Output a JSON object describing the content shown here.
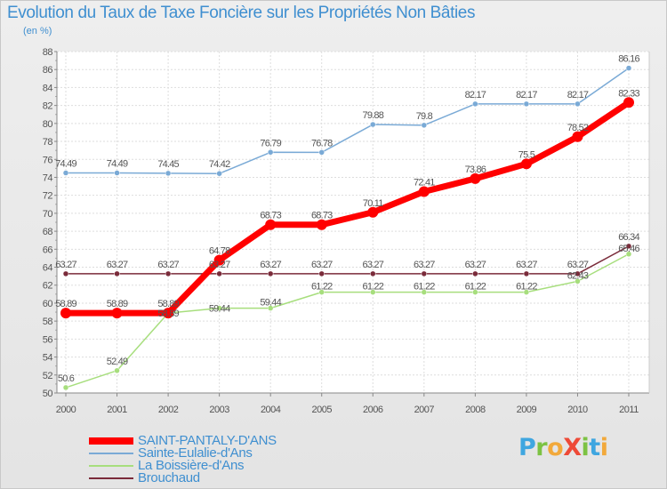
{
  "title": "Evolution du Taux de Taxe Foncière sur les Propriétés Non Bâties",
  "unit": "(en %)",
  "logo": {
    "text": "Proxiti",
    "letters": [
      {
        "ch": "P",
        "color": "#3fa6e0"
      },
      {
        "ch": "r",
        "color": "#7cc243"
      },
      {
        "ch": "o",
        "color": "#f2a93b"
      },
      {
        "ch": "X",
        "color": "#ee4a37"
      },
      {
        "ch": "i",
        "color": "#7cc243"
      },
      {
        "ch": "t",
        "color": "#3fa6e0"
      },
      {
        "ch": "i",
        "color": "#f2a93b"
      }
    ]
  },
  "chart_data": {
    "type": "line",
    "title": "Evolution du Taux de Taxe Foncière sur les Propriétés Non Bâties",
    "ylabel": "(en %)",
    "xlabel": "",
    "x": [
      "2000",
      "2001",
      "2002",
      "2003",
      "2004",
      "2005",
      "2006",
      "2007",
      "2008",
      "2009",
      "2010",
      "2011"
    ],
    "ylim": [
      50,
      88
    ],
    "yticks": [
      "50",
      "52",
      "54",
      "56",
      "58",
      "60",
      "62",
      "64",
      "66",
      "68",
      "70",
      "72",
      "74",
      "76",
      "78",
      "80",
      "82",
      "84",
      "86",
      "88"
    ],
    "grid": true,
    "legend_position": "bottom-left",
    "series": [
      {
        "name": "SAINT-PANTALY-D'ANS",
        "color": "#ff0000",
        "width": 7,
        "marker": 6,
        "values": [
          58.89,
          58.89,
          58.89,
          64.78,
          68.73,
          68.73,
          70.11,
          72.41,
          73.86,
          75.5,
          78.52,
          82.33
        ],
        "labels": [
          "58.89",
          "58.89",
          "58.89",
          "64.78",
          "68.73",
          "68.73",
          "70.11",
          "72.41",
          "73.86",
          "75.5",
          "78.52",
          "82.33"
        ]
      },
      {
        "name": "Sainte-Eulalie-d'Ans",
        "color": "#7aaad6",
        "width": 1.5,
        "marker": 3,
        "values": [
          74.49,
          74.49,
          74.45,
          74.42,
          76.79,
          76.78,
          79.88,
          79.8,
          82.17,
          82.17,
          82.17,
          86.16
        ],
        "labels": [
          "74.49",
          "74.49",
          "74.45",
          "74.42",
          "76.79",
          "76.78",
          "79.88",
          "79.8",
          "82.17",
          "82.17",
          "82.17",
          "86.16"
        ]
      },
      {
        "name": "La Boissière-d'Ans",
        "color": "#a7de7d",
        "width": 1.5,
        "marker": 3,
        "values": [
          50.6,
          52.49,
          58.89,
          59.44,
          59.44,
          61.22,
          61.22,
          61.22,
          61.22,
          61.22,
          62.43,
          65.46
        ],
        "labels": [
          "50.6",
          "52.49",
          "58.89",
          "59.44",
          "59.44",
          "61.22",
          "61.22",
          "61.22",
          "61.22",
          "61.22",
          "62.43",
          "65.46"
        ]
      },
      {
        "name": "Brouchaud",
        "color": "#7a2b3a",
        "width": 1.5,
        "marker": 3,
        "values": [
          63.27,
          63.27,
          63.27,
          63.27,
          63.27,
          63.27,
          63.27,
          63.27,
          63.27,
          63.27,
          63.27,
          66.34
        ],
        "labels": [
          "63.27",
          "63.27",
          "63.27",
          "63.27",
          "63.27",
          "63.27",
          "63.27",
          "63.27",
          "63.27",
          "63.27",
          "63.27",
          "66.34"
        ]
      }
    ]
  }
}
